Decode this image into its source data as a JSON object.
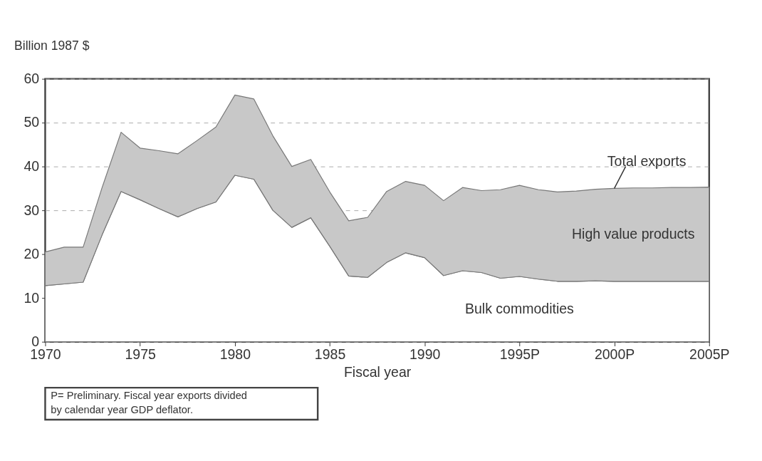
{
  "chart_data": {
    "type": "area",
    "stacked": true,
    "ylabel": "Billion 1987 $",
    "xlabel": "Fiscal year",
    "x": [
      1970,
      1971,
      1972,
      1973,
      1974,
      1975,
      1976,
      1977,
      1978,
      1979,
      1980,
      1981,
      1982,
      1983,
      1984,
      1985,
      1986,
      1987,
      1988,
      1989,
      1990,
      1991,
      1992,
      1993,
      1994,
      1995,
      1996,
      1997,
      1998,
      1999,
      2000,
      2001,
      2002,
      2003,
      2004,
      2005
    ],
    "series": [
      {
        "name": "Bulk commodities",
        "color": "#ffffff",
        "values": [
          12.8,
          13.2,
          13.6,
          24.4,
          34.3,
          32.4,
          30.4,
          28.5,
          30.4,
          31.9,
          38.0,
          37.1,
          30.0,
          26.1,
          28.3,
          21.8,
          15.0,
          14.7,
          18.1,
          20.3,
          19.2,
          15.1,
          16.2,
          15.8,
          14.5,
          14.9,
          14.3,
          13.8,
          13.8,
          13.9,
          13.8,
          13.8,
          13.8,
          13.8,
          13.8,
          13.8
        ]
      },
      {
        "name": "High value products",
        "color": "#c8c8c8",
        "values": [
          7.7,
          8.4,
          8.0,
          10.8,
          13.5,
          11.8,
          13.2,
          14.4,
          15.5,
          17.1,
          18.3,
          18.3,
          17.0,
          13.9,
          13.3,
          12.4,
          12.6,
          13.7,
          16.2,
          16.3,
          16.5,
          17.1,
          19.0,
          18.7,
          20.2,
          20.8,
          20.4,
          20.4,
          20.6,
          20.9,
          21.2,
          21.3,
          21.3,
          21.4,
          21.4,
          21.5
        ]
      }
    ],
    "xlim": [
      1970,
      2005
    ],
    "xticks": [
      1970,
      1975,
      1980,
      1985,
      1990,
      {
        "value": 1995,
        "label": "1995P"
      },
      {
        "value": 2000,
        "label": "2000P"
      },
      {
        "value": 2005,
        "label": "2005P"
      }
    ],
    "ylim": [
      0,
      60
    ],
    "yticks": [
      0,
      10,
      20,
      30,
      40,
      50,
      60
    ],
    "grid": "y",
    "legend": false,
    "annotations": [
      {
        "text": "Total exports",
        "x": 2000,
        "y": 35.0
      },
      "P= Preliminary.  Fiscal year exports divided by calendar year GDP deflator."
    ]
  }
}
